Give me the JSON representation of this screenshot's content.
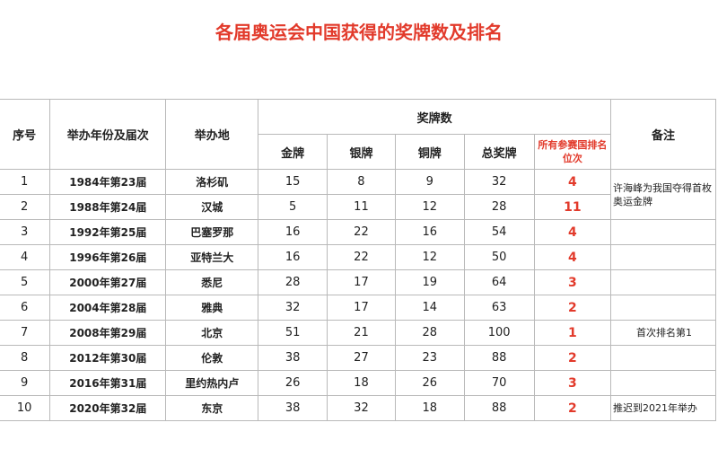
{
  "title": "各届奥运会中国获得的奖牌数及排名",
  "headers": {
    "index": "序号",
    "year": "举办年份及届次",
    "city": "举办地",
    "medals": "奖牌数",
    "gold": "金牌",
    "silver": "银牌",
    "bronze": "铜牌",
    "total": "总奖牌",
    "rank": "所有参赛国排名位次",
    "note": "备注"
  },
  "rows": [
    {
      "index": "1",
      "year": "1984年第23届",
      "city": "洛杉矶",
      "gold": "15",
      "silver": "8",
      "bronze": "9",
      "total": "32",
      "rank": "4",
      "note": "许海峰为我国夺得首枚奥运金牌"
    },
    {
      "index": "2",
      "year": "1988年第24届",
      "city": "汉城",
      "gold": "5",
      "silver": "11",
      "bronze": "12",
      "total": "28",
      "rank": "11",
      "note": ""
    },
    {
      "index": "3",
      "year": "1992年第25届",
      "city": "巴塞罗那",
      "gold": "16",
      "silver": "22",
      "bronze": "16",
      "total": "54",
      "rank": "4",
      "note": ""
    },
    {
      "index": "4",
      "year": "1996年第26届",
      "city": "亚特兰大",
      "gold": "16",
      "silver": "22",
      "bronze": "12",
      "total": "50",
      "rank": "4",
      "note": ""
    },
    {
      "index": "5",
      "year": "2000年第27届",
      "city": "悉尼",
      "gold": "28",
      "silver": "17",
      "bronze": "19",
      "total": "64",
      "rank": "3",
      "note": ""
    },
    {
      "index": "6",
      "year": "2004年第28届",
      "city": "雅典",
      "gold": "32",
      "silver": "17",
      "bronze": "14",
      "total": "63",
      "rank": "2",
      "note": ""
    },
    {
      "index": "7",
      "year": "2008年第29届",
      "city": "北京",
      "gold": "51",
      "silver": "21",
      "bronze": "28",
      "total": "100",
      "rank": "1",
      "note": "首次排名第1"
    },
    {
      "index": "8",
      "year": "2012年第30届",
      "city": "伦敦",
      "gold": "38",
      "silver": "27",
      "bronze": "23",
      "total": "88",
      "rank": "2",
      "note": ""
    },
    {
      "index": "9",
      "year": "2016年第31届",
      "city": "里约热内卢",
      "gold": "26",
      "silver": "18",
      "bronze": "26",
      "total": "70",
      "rank": "3",
      "note": ""
    },
    {
      "index": "10",
      "year": "2020年第32届",
      "city": "东京",
      "gold": "38",
      "silver": "32",
      "bronze": "18",
      "total": "88",
      "rank": "2",
      "note": "推迟到2021年举办"
    }
  ],
  "colors": {
    "accent": "#e23a2b",
    "border": "#b9b9b9"
  }
}
